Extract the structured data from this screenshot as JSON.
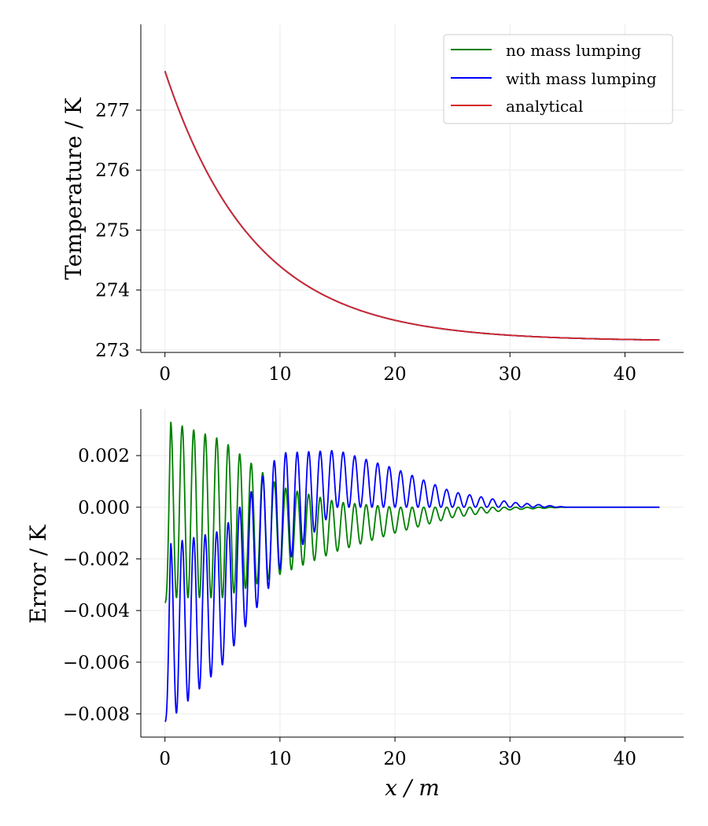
{
  "chart_data": [
    {
      "type": "line",
      "title": "",
      "xlabel": "",
      "ylabel": "Temperature / K",
      "xlim": [
        -2.1,
        45.1
      ],
      "ylim": [
        272.96,
        278.43
      ],
      "xticks": [
        0,
        10,
        20,
        30,
        40
      ],
      "xtick_labels": [
        "0",
        "10",
        "20",
        "30",
        "40"
      ],
      "yticks": [
        273,
        274,
        275,
        276,
        277
      ],
      "ytick_labels": [
        "273",
        "274",
        "275",
        "276",
        "277"
      ],
      "grid": true,
      "legend_position": "top-right",
      "colors": {
        "no_mass_lumping": "#008000",
        "with_mass_lumping": "#0000ff",
        "analytical": "#d62728"
      },
      "model": {
        "x_start": 0,
        "x_end": 43,
        "T_initial": 277.65,
        "T_final": 273.15,
        "decay_length": 7.8
      },
      "series": [
        {
          "name": "no mass lumping",
          "color": "#008000"
        },
        {
          "name": "with mass lumping",
          "color": "#0000ff"
        },
        {
          "name": "analytical",
          "color": "#d62728"
        }
      ]
    },
    {
      "type": "line",
      "title": "",
      "xlabel": "x / m",
      "ylabel": "Error / K",
      "xlim": [
        -2.1,
        45.1
      ],
      "ylim": [
        -0.0089,
        0.0038
      ],
      "xticks": [
        0,
        10,
        20,
        30,
        40
      ],
      "xtick_labels": [
        "0",
        "10",
        "20",
        "30",
        "40"
      ],
      "yticks": [
        -0.008,
        -0.006,
        -0.004,
        -0.002,
        0.0,
        0.002
      ],
      "ytick_labels": [
        "−0.008",
        "−0.006",
        "−0.004",
        "−0.002",
        "0.000",
        "0.002"
      ],
      "grid": true,
      "oscillation_period": 1.0,
      "series": [
        {
          "name": "no mass lumping",
          "color": "#008000",
          "envelope_x": [
            0,
            0.5,
            5,
            10,
            15,
            20,
            25,
            30,
            35,
            43
          ],
          "max": [
            -0.0037,
            0.0033,
            0.0026,
            0.0008,
            0.0002,
            0.0,
            0.0,
            0.0,
            0.0,
            0.0
          ],
          "min": [
            -0.0037,
            -0.0035,
            -0.0035,
            -0.0026,
            -0.0017,
            -0.001,
            -0.0004,
            -0.0001,
            0.0,
            0.0
          ]
        },
        {
          "name": "with mass lumping",
          "color": "#0000ff",
          "envelope_x": [
            0,
            0.5,
            5,
            10,
            15,
            20,
            25,
            30,
            35,
            43
          ],
          "max": [
            -0.0083,
            -0.0014,
            -0.0009,
            0.0021,
            0.0022,
            0.0015,
            0.0006,
            0.0002,
            0.0,
            0.0
          ],
          "min": [
            -0.0083,
            -0.0082,
            -0.0061,
            -0.0024,
            0.0,
            0.0,
            0.0,
            0.0,
            0.0,
            0.0
          ]
        }
      ]
    }
  ]
}
